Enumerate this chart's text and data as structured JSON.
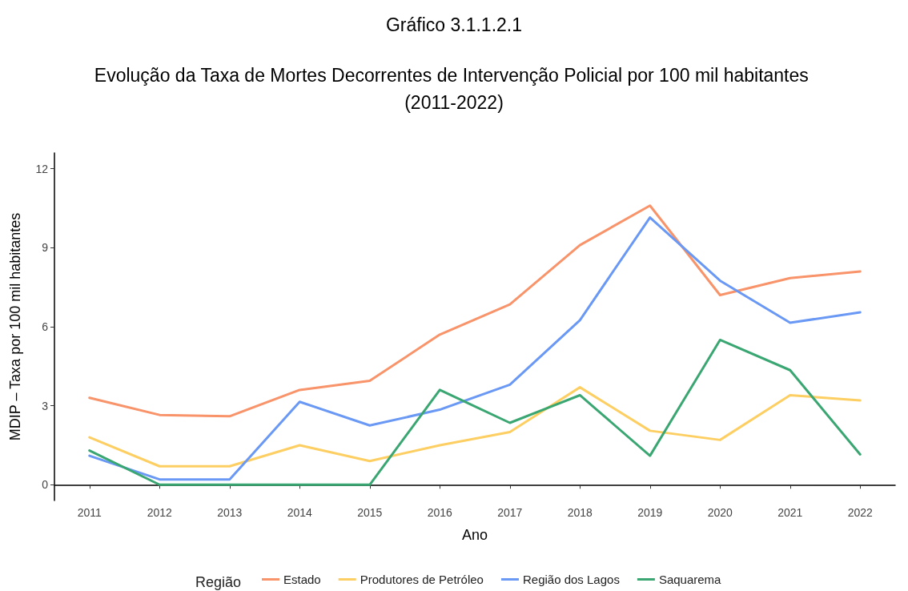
{
  "chart_data": {
    "type": "line",
    "title": "Gráfico 3.1.1.2.1",
    "subtitle": "Evolução da Taxa de Mortes Decorrentes de Intervenção Policial por 100 mil habitantes (2011-2022)",
    "xlabel": "Ano",
    "ylabel": "MDIP – Taxa por 100 mil habitantes",
    "legend_title": "Região",
    "categories": [
      "2011",
      "2012",
      "2013",
      "2014",
      "2015",
      "2016",
      "2017",
      "2018",
      "2019",
      "2020",
      "2021",
      "2022"
    ],
    "ylim": [
      -0.6,
      12.6
    ],
    "yticks": [
      0,
      3,
      6,
      9,
      12
    ],
    "grid": false,
    "legend": "bottom",
    "marker": "none",
    "line_style": "solid",
    "series": [
      {
        "name": "Estado",
        "color": "#f8936a",
        "values": [
          3.3,
          2.65,
          2.6,
          3.6,
          3.95,
          5.7,
          6.85,
          9.1,
          10.6,
          7.2,
          7.85,
          8.1
        ]
      },
      {
        "name": "Produtores de Petróleo",
        "color": "#fdcf63",
        "values": [
          1.8,
          0.7,
          0.7,
          1.5,
          0.9,
          1.5,
          2.0,
          3.7,
          2.05,
          1.7,
          3.4,
          3.2
        ]
      },
      {
        "name": "Região dos Lagos",
        "color": "#6a98f5",
        "values": [
          1.1,
          0.2,
          0.2,
          3.15,
          2.25,
          2.85,
          3.8,
          6.25,
          10.15,
          7.75,
          6.15,
          6.55
        ]
      },
      {
        "name": "Saquarema",
        "color": "#3aa672",
        "values": [
          1.3,
          0,
          0,
          0,
          0,
          3.6,
          2.35,
          3.4,
          1.1,
          5.5,
          4.35,
          1.15
        ]
      }
    ]
  }
}
